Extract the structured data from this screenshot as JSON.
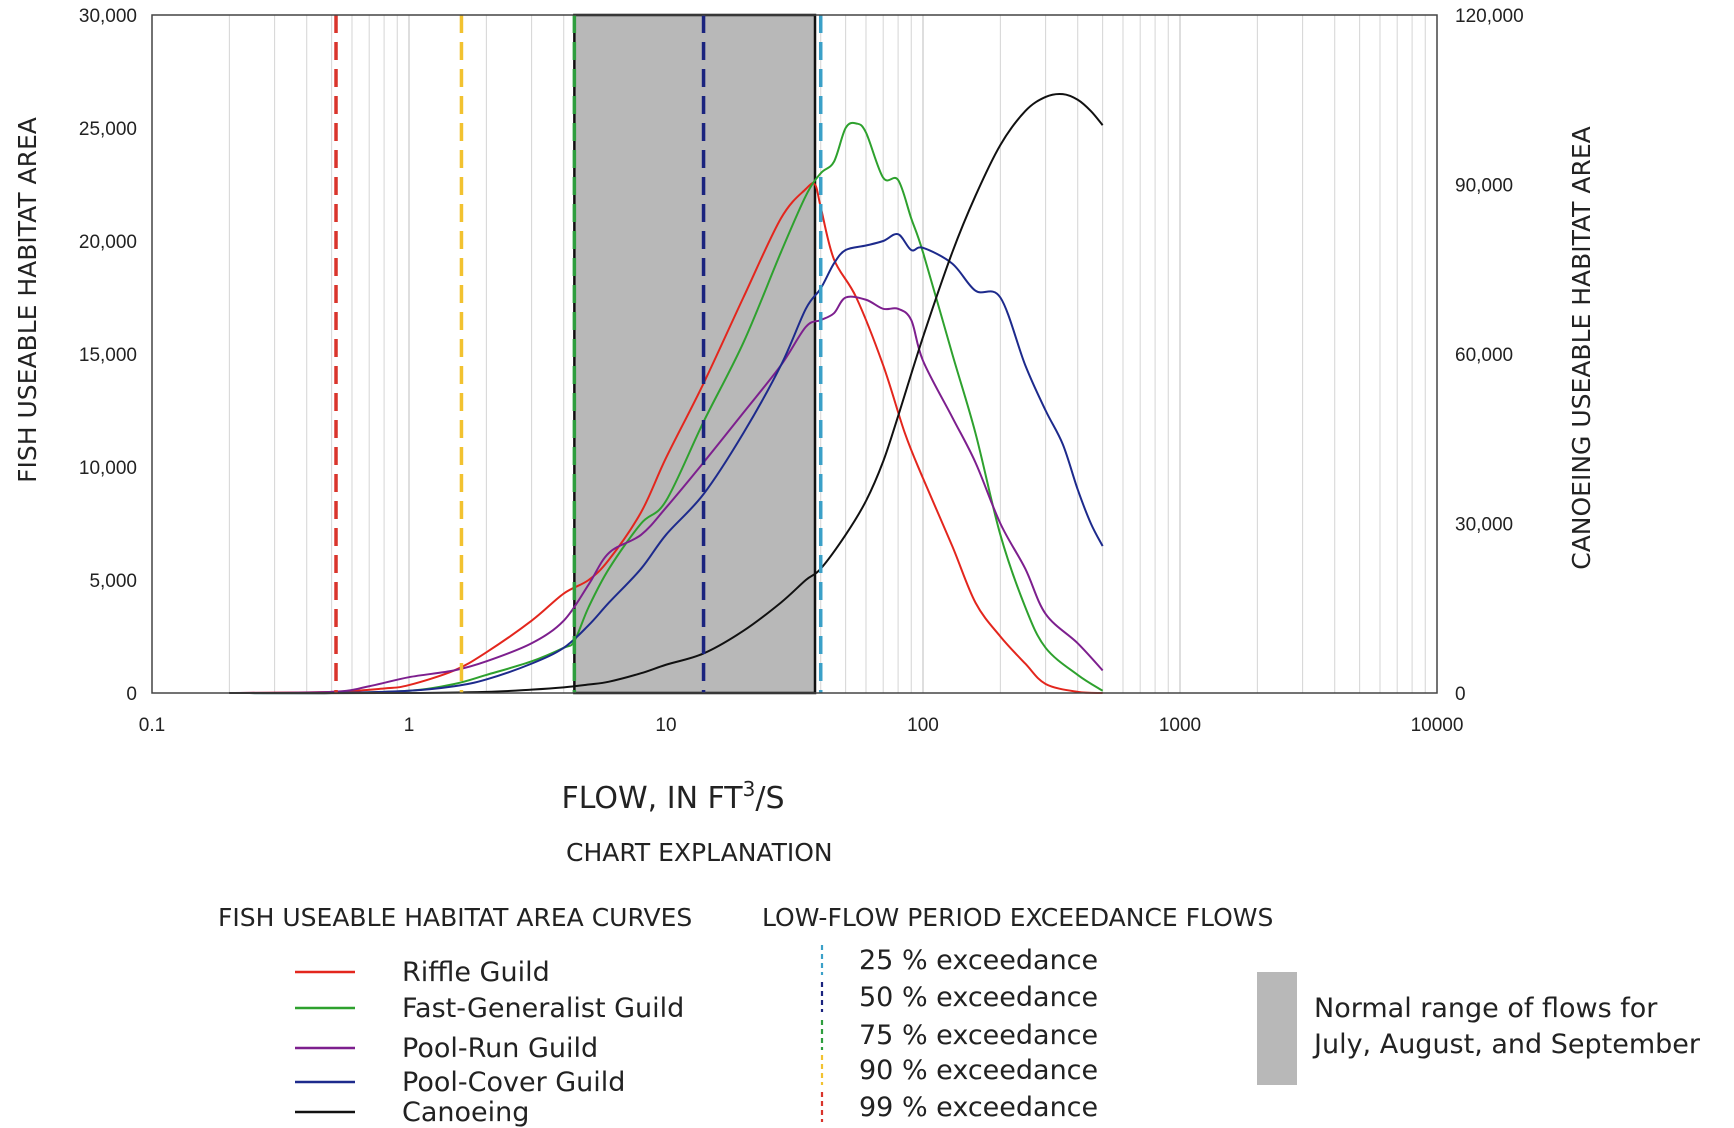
{
  "chart_data": {
    "type": "line",
    "x_axis": {
      "label": "FLOW, IN FT",
      "label_sup": "3",
      "label_suffix": "/S",
      "scale": "log",
      "range": [
        0.1,
        10000
      ],
      "ticks": [
        "0.1",
        "1",
        "10",
        "100",
        "1000",
        "10000"
      ]
    },
    "y_axis_left": {
      "label": "FISH USEABLE HABITAT AREA",
      "range": [
        0,
        30000
      ],
      "ticks": [
        "0",
        "5,000",
        "10,000",
        "15,000",
        "20,000",
        "25,000",
        "30,000"
      ]
    },
    "y_axis_right": {
      "label": "CANOEING USEABLE HABITAT AREA",
      "range": [
        0,
        120000
      ],
      "ticks": [
        "0",
        "30,000",
        "60,000",
        "90,000",
        "120,000"
      ]
    },
    "grid": "vertical log minor gridlines",
    "normal_range_band": {
      "x_start": 4.4,
      "x_end": 38,
      "color": "#b8b8b8"
    },
    "exceedance_lines": [
      {
        "name": "25 % exceedance",
        "x": 40,
        "color": "#3aa0c8"
      },
      {
        "name": "50 % exceedance",
        "x": 14,
        "color": "#1a237e"
      },
      {
        "name": "75 % exceedance",
        "x": 4.4,
        "color": "#2e9e3e"
      },
      {
        "name": "90 % exceedance",
        "x": 1.6,
        "color": "#f2c230"
      },
      {
        "name": "99 % exceedance",
        "x": 0.52,
        "color": "#d9342b"
      }
    ],
    "series": [
      {
        "name": "Riffle Guild",
        "axis": "left",
        "color": "#e3261d",
        "x": [
          0.2,
          0.5,
          0.8,
          1,
          1.5,
          2,
          3,
          4,
          5,
          6,
          8,
          10,
          14,
          20,
          28,
          35,
          38,
          40,
          45,
          55,
          70,
          85,
          100,
          130,
          160,
          200,
          250,
          300,
          400,
          500
        ],
        "y": [
          0,
          50,
          200,
          350,
          1000,
          1800,
          3200,
          4400,
          5000,
          5900,
          8000,
          10400,
          13700,
          17500,
          21000,
          22300,
          22500,
          21500,
          19200,
          17500,
          14500,
          11500,
          9500,
          6500,
          4000,
          2500,
          1300,
          400,
          50,
          0
        ]
      },
      {
        "name": "Fast-Generalist Guild",
        "axis": "left",
        "color": "#2ea12e",
        "x": [
          0.2,
          0.5,
          1,
          1.5,
          2,
          3,
          4,
          4.4,
          5,
          6,
          8,
          10,
          14,
          20,
          28,
          35,
          40,
          45,
          50,
          55,
          60,
          70,
          80,
          90,
          100,
          130,
          160,
          200,
          250,
          300,
          400,
          500
        ],
        "y": [
          0,
          0,
          100,
          400,
          800,
          1400,
          2000,
          2300,
          3800,
          5500,
          7500,
          8500,
          12000,
          15500,
          19500,
          22000,
          23000,
          23500,
          25000,
          25200,
          24800,
          22800,
          22700,
          21000,
          19500,
          15000,
          11500,
          7000,
          3800,
          2000,
          800,
          100
        ]
      },
      {
        "name": "Pool-Run Guild",
        "axis": "left",
        "color": "#7d1f8e",
        "x": [
          0.2,
          0.5,
          0.7,
          1,
          1.5,
          2,
          3,
          4,
          5,
          6,
          8,
          10,
          14,
          20,
          28,
          35,
          40,
          45,
          50,
          60,
          70,
          80,
          90,
          100,
          130,
          160,
          200,
          250,
          300,
          400,
          500
        ],
        "y": [
          0,
          50,
          300,
          700,
          1000,
          1400,
          2200,
          3200,
          4800,
          6200,
          7000,
          8200,
          10200,
          12400,
          14500,
          16200,
          16500,
          16800,
          17500,
          17400,
          17000,
          17000,
          16500,
          14700,
          12200,
          10200,
          7500,
          5500,
          3500,
          2200,
          1000
        ]
      },
      {
        "name": "Pool-Cover Guild",
        "axis": "left",
        "color": "#1d2a8c",
        "x": [
          0.2,
          0.5,
          1,
          1.5,
          2,
          3,
          4,
          5,
          6,
          8,
          10,
          14,
          20,
          28,
          35,
          40,
          45,
          50,
          60,
          70,
          80,
          90,
          100,
          130,
          160,
          200,
          250,
          300,
          350,
          400,
          450,
          500
        ],
        "y": [
          0,
          0,
          100,
          300,
          600,
          1300,
          2000,
          3000,
          4000,
          5500,
          7000,
          8800,
          11500,
          14500,
          17000,
          17900,
          19000,
          19600,
          19800,
          20000,
          20300,
          19600,
          19700,
          19000,
          17800,
          17500,
          14500,
          12500,
          11000,
          9000,
          7500,
          6500
        ]
      },
      {
        "name": "Canoeing",
        "axis": "right",
        "color": "#111111",
        "x": [
          0.2,
          1,
          2,
          3,
          4,
          5,
          6,
          8,
          10,
          14,
          20,
          28,
          35,
          40,
          50,
          60,
          70,
          80,
          100,
          130,
          160,
          200,
          250,
          300,
          350,
          400,
          450,
          500
        ],
        "y": [
          0,
          0,
          200,
          600,
          1000,
          1500,
          2000,
          3500,
          5000,
          7000,
          11000,
          16000,
          20000,
          22000,
          28000,
          34000,
          41000,
          49000,
          63000,
          78000,
          88000,
          97000,
          103000,
          105500,
          106000,
          105000,
          103000,
          100500
        ]
      }
    ]
  },
  "legend": {
    "title": "CHART EXPLANATION",
    "curves_heading": "FISH USEABLE HABITAT AREA CURVES",
    "flows_heading": "LOW-FLOW PERIOD EXCEEDANCE FLOWS",
    "curves": [
      {
        "label": "Riffle Guild",
        "color": "#e3261d"
      },
      {
        "label": "Fast-Generalist Guild",
        "color": "#2ea12e"
      },
      {
        "label": "Pool-Run Guild",
        "color": "#7d1f8e"
      },
      {
        "label": "Pool-Cover Guild",
        "color": "#1d2a8c"
      },
      {
        "label": "Canoeing",
        "color": "#111111"
      }
    ],
    "flows": [
      {
        "label": "25 % exceedance",
        "color": "#3aa0c8"
      },
      {
        "label": "50 % exceedance",
        "color": "#1a237e"
      },
      {
        "label": "75 % exceedance",
        "color": "#2e9e3e"
      },
      {
        "label": "90 % exceedance",
        "color": "#f2c230"
      },
      {
        "label": "99 % exceedance",
        "color": "#d9342b"
      }
    ],
    "band_label_line1": "Normal range of flows for",
    "band_label_line2": "July, August, and September"
  }
}
